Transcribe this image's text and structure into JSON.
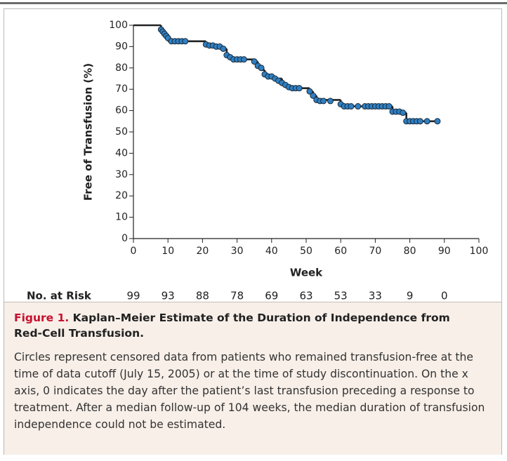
{
  "chart_data": {
    "type": "step",
    "x": [
      0,
      8,
      8.5,
      9,
      9.5,
      10,
      21,
      23,
      25,
      26,
      27,
      28,
      29,
      35,
      36,
      37,
      38,
      39,
      41,
      43,
      44,
      45,
      46,
      51,
      52,
      53,
      60,
      61,
      75,
      77,
      79,
      88
    ],
    "values": [
      100,
      98,
      97,
      96,
      95,
      92.5,
      91,
      90.5,
      90,
      89,
      86,
      85,
      84,
      83,
      81,
      79,
      77,
      76,
      75,
      73,
      72,
      71,
      70.5,
      69,
      67,
      65,
      63,
      62,
      59.5,
      59,
      55,
      55
    ],
    "color": "#222222",
    "censored": {
      "x": [
        8,
        8.5,
        9,
        9.5,
        10,
        11,
        12,
        13,
        14,
        15,
        21,
        22,
        23,
        24,
        25,
        26,
        27,
        28,
        29,
        30,
        31,
        32,
        35,
        36,
        37,
        38,
        39,
        40,
        41,
        42,
        43,
        44,
        45,
        46,
        47,
        48,
        51,
        52,
        53,
        54,
        55,
        57,
        60,
        61,
        62,
        63,
        65,
        67,
        68,
        69,
        70,
        71,
        72,
        73,
        74,
        75,
        76,
        77,
        78,
        79,
        80,
        81,
        82,
        83,
        85,
        88
      ],
      "values": [
        98,
        97,
        96,
        95,
        94,
        92.5,
        92.5,
        92.5,
        92.5,
        92.5,
        91,
        90.5,
        90.5,
        90,
        90,
        89,
        86,
        85,
        84,
        84,
        84,
        84,
        83,
        81,
        80,
        77,
        76,
        76,
        75,
        74,
        73,
        72,
        71,
        70.5,
        70.5,
        70.5,
        69,
        67,
        65,
        64.5,
        64.5,
        64.5,
        63,
        62,
        62,
        62,
        62,
        62,
        62,
        62,
        62,
        62,
        62,
        62,
        62,
        59.5,
        59.5,
        59.5,
        59,
        55,
        55,
        55,
        55,
        55,
        55,
        55
      ],
      "color": "#2f7fc1"
    },
    "xlabel": "Week",
    "ylabel": "Free of Transfusion (%)",
    "xlim": [
      0,
      100
    ],
    "xticks": [
      0,
      10,
      20,
      30,
      40,
      50,
      60,
      70,
      80,
      90,
      100
    ],
    "ylim": [
      0,
      100
    ],
    "yticks": [
      0,
      10,
      20,
      30,
      40,
      50,
      60,
      70,
      80,
      90,
      100
    ],
    "at_risk": {
      "label": "No. at Risk",
      "values": [
        99,
        93,
        88,
        78,
        69,
        63,
        53,
        33,
        9,
        0
      ]
    }
  },
  "caption": {
    "label": "Figure 1.",
    "title": "Kaplan–Meier Estimate of the Duration of Independence from Red-Cell Transfusion.",
    "text": "Circles represent censored data from patients who remained transfusion-free at the time of data cutoff (July 15, 2005) or at the time of study discontinuation. On the x axis, 0 indicates the day after the patient’s last transfusion preceding a response to treatment. After a median follow-up of 104 weeks, the median duration of transfusion independence could not be estimated."
  }
}
